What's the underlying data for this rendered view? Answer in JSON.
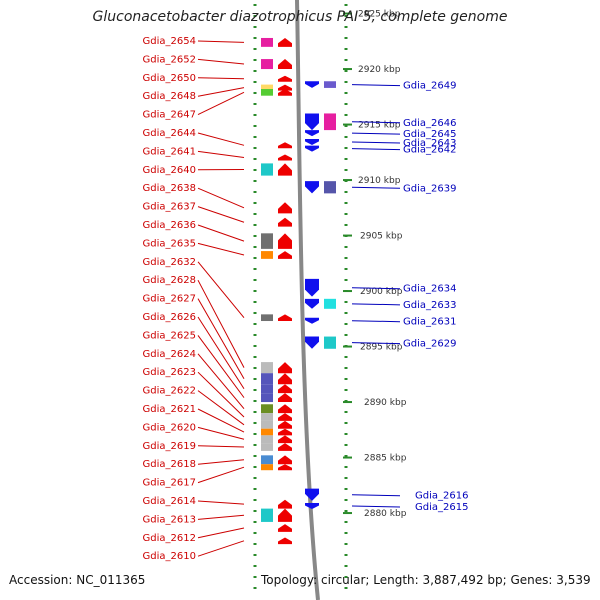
{
  "title": "Gluconacetobacter diazotrophicus PAI 5, complete genome",
  "footer": {
    "accession": "Accession: NC_011365",
    "topology": "Topology: circular; Length: 3,887,492 bp; Genes: 3,539"
  },
  "colors": {
    "left_label": "#cc0000",
    "right_label": "#0000bb",
    "backbone": "#888888",
    "tick": "#2a8a2a",
    "forward_arrow": "#ee0000",
    "reverse_arrow": "#1010ee"
  },
  "scale_unit": "kbp",
  "scale_ticks": [
    {
      "label": "2925 kbp",
      "kbp": 2925
    },
    {
      "label": "2920 kbp",
      "kbp": 2920
    },
    {
      "label": "2915 kbp",
      "kbp": 2915
    },
    {
      "label": "2910 kbp",
      "kbp": 2910
    },
    {
      "label": "2905 kbp",
      "kbp": 2905
    },
    {
      "label": "2900 kbp",
      "kbp": 2900
    },
    {
      "label": "2895 kbp",
      "kbp": 2895
    },
    {
      "label": "2890 kbp",
      "kbp": 2890
    },
    {
      "label": "2885 kbp",
      "kbp": 2885
    },
    {
      "label": "2880 kbp",
      "kbp": 2880
    }
  ],
  "genes_forward": [
    {
      "label": "Gdia_2654",
      "start_kbp": 2922.0,
      "end_kbp": 2922.8,
      "cog_color": "#e61fa0"
    },
    {
      "label": "Gdia_2652",
      "start_kbp": 2920.0,
      "end_kbp": 2920.9,
      "cog_color": "#e61fa0"
    },
    {
      "label": "Gdia_2650",
      "start_kbp": 2919.0,
      "end_kbp": 2919.4,
      "cog_color": ""
    },
    {
      "label": "Gdia_2648",
      "start_kbp": 2918.2,
      "end_kbp": 2918.6,
      "cog_color": "#ffd966"
    },
    {
      "label": "Gdia_2647",
      "start_kbp": 2917.6,
      "end_kbp": 2918.2,
      "cog_color": "#55cc33"
    },
    {
      "label": "Gdia_2644",
      "start_kbp": 2913.0,
      "end_kbp": 2913.4,
      "cog_color": ""
    },
    {
      "label": "Gdia_2641",
      "start_kbp": 2911.8,
      "end_kbp": 2912.3,
      "cog_color": ""
    },
    {
      "label": "Gdia_2640",
      "start_kbp": 2910.4,
      "end_kbp": 2911.5,
      "cog_color": "#1ec8c8"
    },
    {
      "label": "Gdia_2638",
      "start_kbp": 2907.0,
      "end_kbp": 2908.0,
      "cog_color": ""
    },
    {
      "label": "Gdia_2637",
      "start_kbp": 2905.8,
      "end_kbp": 2906.6,
      "cog_color": ""
    },
    {
      "label": "Gdia_2636",
      "start_kbp": 2903.8,
      "end_kbp": 2905.2,
      "cog_color": "#707070"
    },
    {
      "label": "Gdia_2635",
      "start_kbp": 2902.9,
      "end_kbp": 2903.6,
      "cog_color": "#ff8800"
    },
    {
      "label": "Gdia_2632",
      "start_kbp": 2897.3,
      "end_kbp": 2897.9,
      "cog_color": "#707070"
    },
    {
      "label": "Gdia_2628",
      "start_kbp": 2892.6,
      "end_kbp": 2893.6,
      "cog_color": "#bbbbbb"
    },
    {
      "label": "Gdia_2627",
      "start_kbp": 2891.6,
      "end_kbp": 2892.6,
      "cog_color": "#5555bb"
    },
    {
      "label": "Gdia_2626",
      "start_kbp": 2890.8,
      "end_kbp": 2891.6,
      "cog_color": "#5555bb"
    },
    {
      "label": "Gdia_2625",
      "start_kbp": 2890.0,
      "end_kbp": 2890.8,
      "cog_color": "#5555bb"
    },
    {
      "label": "Gdia_2624",
      "start_kbp": 2889.0,
      "end_kbp": 2889.8,
      "cog_color": "#6b8e23"
    },
    {
      "label": "Gdia_2623",
      "start_kbp": 2888.3,
      "end_kbp": 2889.0,
      "cog_color": "#bbbbbb"
    },
    {
      "label": "Gdia_2622",
      "start_kbp": 2887.6,
      "end_kbp": 2888.3,
      "cog_color": "#bbbbbb"
    },
    {
      "label": "Gdia_2621",
      "start_kbp": 2887.0,
      "end_kbp": 2887.6,
      "cog_color": "#ff8800"
    },
    {
      "label": "Gdia_2620",
      "start_kbp": 2886.3,
      "end_kbp": 2887.0,
      "cog_color": "#bbbbbb"
    },
    {
      "label": "Gdia_2619",
      "start_kbp": 2885.6,
      "end_kbp": 2886.3,
      "cog_color": "#bbbbbb"
    },
    {
      "label": "Gdia_2618",
      "start_kbp": 2884.4,
      "end_kbp": 2885.2,
      "cog_color": "#4a8cd2"
    },
    {
      "label": "Gdia_2617",
      "start_kbp": 2883.9,
      "end_kbp": 2884.4,
      "cog_color": "#ff8800"
    },
    {
      "label": "Gdia_2614",
      "start_kbp": 2880.4,
      "end_kbp": 2881.2,
      "cog_color": ""
    },
    {
      "label": "Gdia_2613",
      "start_kbp": 2879.2,
      "end_kbp": 2880.4,
      "cog_color": "#1ec8c8"
    },
    {
      "label": "Gdia_2612",
      "start_kbp": 2878.3,
      "end_kbp": 2879.0,
      "cog_color": ""
    },
    {
      "label": "Gdia_2610",
      "start_kbp": 2877.2,
      "end_kbp": 2877.8,
      "cog_color": ""
    }
  ],
  "genes_reverse": [
    {
      "label": "Gdia_2649",
      "start_kbp": 2918.3,
      "end_kbp": 2918.9,
      "cog_color": "#6a5acd"
    },
    {
      "label": "Gdia_2646",
      "start_kbp": 2914.5,
      "end_kbp": 2916.0,
      "cog_color": "#e61fa0"
    },
    {
      "label": "Gdia_2645",
      "start_kbp": 2914.0,
      "end_kbp": 2914.5,
      "cog_color": ""
    },
    {
      "label": "Gdia_2643",
      "start_kbp": 2913.3,
      "end_kbp": 2913.7,
      "cog_color": ""
    },
    {
      "label": "Gdia_2642",
      "start_kbp": 2912.7,
      "end_kbp": 2913.1,
      "cog_color": ""
    },
    {
      "label": "Gdia_2639",
      "start_kbp": 2908.8,
      "end_kbp": 2909.9,
      "cog_color": "#5555aa"
    },
    {
      "label": "Gdia_2634",
      "start_kbp": 2899.5,
      "end_kbp": 2901.1,
      "cog_color": ""
    },
    {
      "label": "Gdia_2633",
      "start_kbp": 2898.4,
      "end_kbp": 2899.3,
      "cog_color": "#22e0e0"
    },
    {
      "label": "Gdia_2631",
      "start_kbp": 2897.2,
      "end_kbp": 2897.6,
      "cog_color": ""
    },
    {
      "label": "Gdia_2629",
      "start_kbp": 2894.8,
      "end_kbp": 2895.9,
      "cog_color": "#1ec8c8"
    },
    {
      "label": "Gdia_2616",
      "start_kbp": 2881.1,
      "end_kbp": 2882.2,
      "cog_color": ""
    },
    {
      "label": "Gdia_2615",
      "start_kbp": 2880.5,
      "end_kbp": 2880.9,
      "cog_color": ""
    }
  ]
}
